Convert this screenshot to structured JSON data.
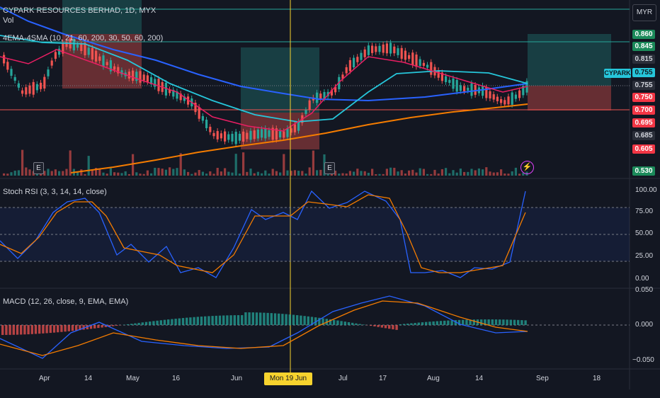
{
  "header": {
    "title": "CYPARK RESOURCES BERHAD, 1D, MYX",
    "vol_label": "Vol",
    "indicator_label": "4EMA-4SMA (10, 21, 60, 200, 30, 50, 60, 200)"
  },
  "currency_button": "MYR",
  "symbol_tag": "CYPARK",
  "price_labels": [
    {
      "text": "0.860",
      "color": "#1b8a5a",
      "fg": "#ffffff"
    },
    {
      "text": "0.845",
      "color": "#1b8a5a",
      "fg": "#ffffff"
    },
    {
      "text": "0.815",
      "color": "#2a2e39",
      "fg": "#d1d4dc"
    },
    {
      "text": "0.755",
      "color": "#26c6da",
      "fg": "#0c1a20"
    },
    {
      "text": "0.755",
      "color": "#2a2e39",
      "fg": "#d1d4dc"
    },
    {
      "text": "0.750",
      "color": "#f23645",
      "fg": "#ffffff"
    },
    {
      "text": "0.700",
      "color": "#f23645",
      "fg": "#ffffff"
    },
    {
      "text": "0.695",
      "color": "#f23645",
      "fg": "#ffffff"
    },
    {
      "text": "0.685",
      "color": "#2a2e39",
      "fg": "#d1d4dc"
    },
    {
      "text": "0.605",
      "color": "#f23645",
      "fg": "#ffffff"
    },
    {
      "text": "0.530",
      "color": "#1b8a5a",
      "fg": "#ffffff"
    }
  ],
  "stoch_panel": {
    "label": "Stoch RSI (3, 3, 14, 14, close)",
    "ticks": [
      "100.00",
      "75.00",
      "50.00",
      "25.00",
      "0.00"
    ]
  },
  "macd_panel": {
    "label": "MACD (12, 26, close, 9, EMA, EMA)",
    "ticks": [
      "0.050",
      "0.000",
      "−0.050"
    ]
  },
  "x_axis": {
    "labels": [
      "Apr",
      "14",
      "May",
      "16",
      "Jun",
      "Jul",
      "17",
      "Aug",
      "14",
      "Sep",
      "18"
    ],
    "cursor_date": "Mon 19 Jun '23"
  },
  "earnings_markers": [
    "E",
    "E"
  ],
  "dividend_icon": "lightning-icon",
  "colors": {
    "up": "#26a69a",
    "down": "#ef5350",
    "background": "#131722",
    "crosshair": "#f7d32e",
    "ema_blue": "#2962ff",
    "ema_cyan": "#26c6da",
    "ema_orange": "#f57c00",
    "ema_pink": "#e91e63",
    "stoch_k": "#2962ff",
    "stoch_d": "#f57c00"
  }
}
